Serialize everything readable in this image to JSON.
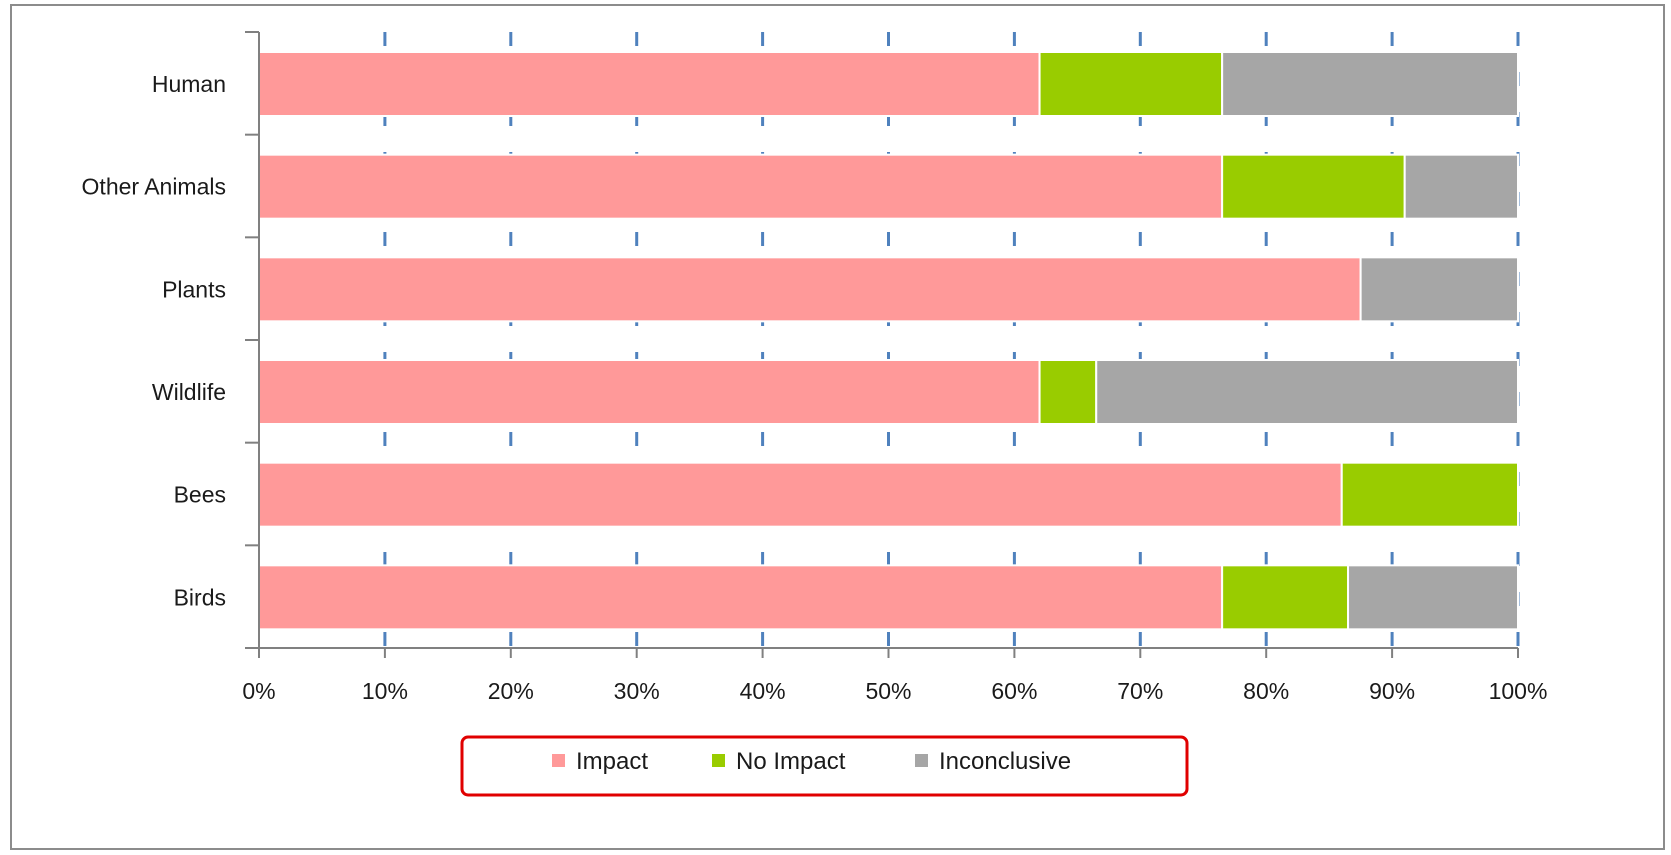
{
  "chart_data": {
    "type": "bar",
    "orientation": "horizontal",
    "stacked": "percent",
    "categories": [
      "Human",
      "Other Animals",
      "Plants",
      "Wildlife",
      "Bees",
      "Birds"
    ],
    "series": [
      {
        "name": "Impact",
        "color": "#ff9999",
        "values": [
          62,
          76.5,
          87.5,
          62,
          86,
          76.5
        ]
      },
      {
        "name": "No Impact",
        "color": "#99cc00",
        "values": [
          14.5,
          14.5,
          0,
          4.5,
          14,
          10
        ]
      },
      {
        "name": "Inconclusive",
        "color": "#a6a6a6",
        "values": [
          23.5,
          9,
          12.5,
          33.5,
          0,
          13.5
        ]
      }
    ],
    "xlim": [
      0,
      100
    ],
    "xticks": [
      0,
      10,
      20,
      30,
      40,
      50,
      60,
      70,
      80,
      90,
      100
    ],
    "xtick_labels": [
      "0%",
      "10%",
      "20%",
      "30%",
      "40%",
      "50%",
      "60%",
      "70%",
      "80%",
      "90%",
      "100%"
    ],
    "gridlines": "vertical-dashed",
    "gridline_color": "#4f81bd",
    "legend": {
      "position": "bottom",
      "entries": [
        "Impact",
        "No Impact",
        "Inconclusive"
      ],
      "border_color": "#e00000"
    },
    "title": "",
    "xlabel": "",
    "ylabel": ""
  }
}
